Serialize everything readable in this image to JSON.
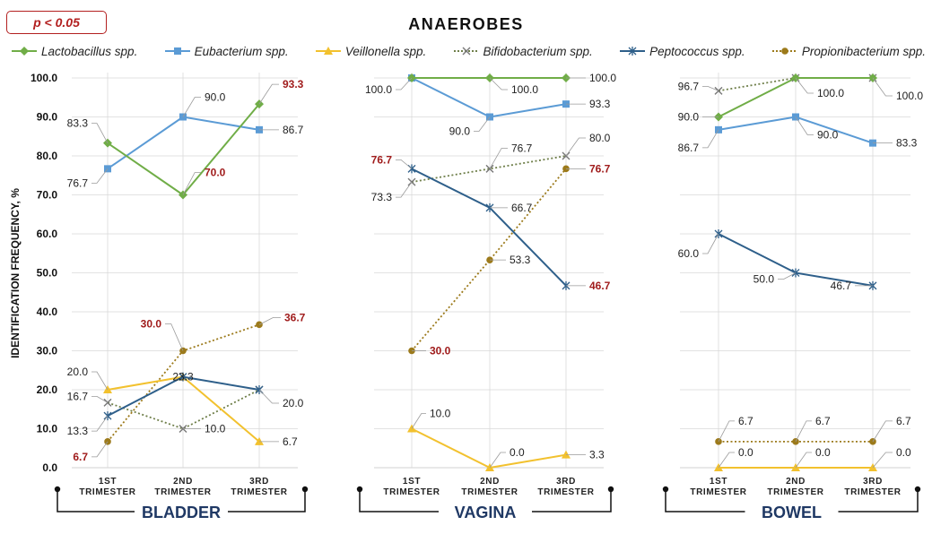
{
  "badge": "p < 0.05",
  "colors": {
    "grid": "#d9d9d9",
    "significant_label": "#a01c1c",
    "normal_label": "#222222",
    "group_label": "#1f3864",
    "leader": "#9a9a9a"
  },
  "chart_data": {
    "type": "line",
    "title": "ANAEROBES",
    "ylabel": "IDENTIFICATION FREQUENCY, %",
    "ylim": [
      0,
      100
    ],
    "yticks": [
      "0.0",
      "10.0",
      "20.0",
      "30.0",
      "40.0",
      "50.0",
      "60.0",
      "70.0",
      "80.0",
      "90.0",
      "100.0"
    ],
    "categories": [
      "1ST TRIMESTER",
      "2ND TRIMESTER",
      "3RD TRIMESTER"
    ],
    "category_lines": [
      [
        "1ST",
        "TRIMESTER"
      ],
      [
        "2ND",
        "TRIMESTER"
      ],
      [
        "3RD",
        "TRIMESTER"
      ]
    ],
    "grid": true,
    "legend_position": "top",
    "series": [
      {
        "name": "Lactobacillus spp.",
        "color": "#70ad47",
        "marker": "diamond",
        "dash": false
      },
      {
        "name": "Eubacterium spp.",
        "color": "#5b9bd5",
        "marker": "square",
        "dash": false
      },
      {
        "name": "Veillonella spp.",
        "color": "#f2c12e",
        "marker": "triangle",
        "dash": false
      },
      {
        "name": "Bifidobacterium spp.",
        "color": "#6f7f4a",
        "marker": "x",
        "dash": true
      },
      {
        "name": "Peptococcus spp.",
        "color": "#2e5f8a",
        "marker": "star",
        "dash": false
      },
      {
        "name": "Propionibacterium spp.",
        "color": "#9c7a1b",
        "marker": "circle",
        "dash": true
      }
    ],
    "groups": [
      {
        "name": "BLADDER",
        "series": [
          {
            "name": "Lactobacillus spp.",
            "values": [
              83.3,
              70.0,
              93.3
            ],
            "labels": [
              {
                "text": "83.3",
                "significant": false
              },
              {
                "text": "70.0",
                "significant": true
              },
              {
                "text": "93.3",
                "significant": true
              }
            ]
          },
          {
            "name": "Eubacterium spp.",
            "values": [
              76.7,
              90.0,
              86.7
            ],
            "labels": [
              {
                "text": "76.7",
                "significant": false
              },
              {
                "text": "90.0",
                "significant": false
              },
              {
                "text": "86.7",
                "significant": false
              }
            ]
          },
          {
            "name": "Veillonella spp.",
            "values": [
              20.0,
              23.3,
              6.7
            ],
            "labels": [
              {
                "text": "20.0",
                "significant": false
              },
              {
                "text": "23.3",
                "significant": false
              },
              {
                "text": "6.7",
                "significant": false
              }
            ]
          },
          {
            "name": "Bifidobacterium spp.",
            "values": [
              16.7,
              10.0,
              20.0
            ],
            "labels": [
              {
                "text": "16.7",
                "significant": false
              },
              {
                "text": "10.0",
                "significant": false
              },
              {
                "text": "20.0",
                "significant": false
              }
            ]
          },
          {
            "name": "Peptococcus spp.",
            "values": [
              13.3,
              23.3,
              20.0
            ],
            "labels": [
              {
                "text": "13.3",
                "significant": false
              },
              null,
              null
            ]
          },
          {
            "name": "Propionibacterium spp.",
            "values": [
              6.7,
              30.0,
              36.7
            ],
            "labels": [
              {
                "text": "6.7",
                "significant": true
              },
              {
                "text": "30.0",
                "significant": true
              },
              {
                "text": "36.7",
                "significant": true
              }
            ]
          }
        ]
      },
      {
        "name": "VAGINA",
        "series": [
          {
            "name": "Lactobacillus spp.",
            "values": [
              100.0,
              100.0,
              100.0
            ],
            "labels": [
              null,
              {
                "text": "100.0",
                "significant": false
              },
              {
                "text": "100.0",
                "significant": false
              }
            ]
          },
          {
            "name": "Eubacterium spp.",
            "values": [
              100.0,
              90.0,
              93.3
            ],
            "labels": [
              {
                "text": "100.0",
                "significant": false
              },
              {
                "text": "90.0",
                "significant": false
              },
              {
                "text": "93.3",
                "significant": false
              }
            ]
          },
          {
            "name": "Veillonella spp.",
            "values": [
              10.0,
              0.0,
              3.3
            ],
            "labels": [
              {
                "text": "10.0",
                "significant": false
              },
              {
                "text": "0.0",
                "significant": false
              },
              {
                "text": "3.3",
                "significant": false
              }
            ]
          },
          {
            "name": "Bifidobacterium spp.",
            "values": [
              73.3,
              76.7,
              80.0
            ],
            "labels": [
              {
                "text": "73.3",
                "significant": false
              },
              {
                "text": "76.7",
                "significant": false
              },
              {
                "text": "80.0",
                "significant": false
              }
            ]
          },
          {
            "name": "Peptococcus spp.",
            "values": [
              76.7,
              66.7,
              46.7
            ],
            "labels": [
              {
                "text": "76.7",
                "significant": true
              },
              {
                "text": "66.7",
                "significant": false
              },
              {
                "text": "46.7",
                "significant": true
              }
            ]
          },
          {
            "name": "Propionibacterium spp.",
            "values": [
              30.0,
              53.3,
              76.7
            ],
            "labels": [
              {
                "text": "30.0",
                "significant": true
              },
              {
                "text": "53.3",
                "significant": false
              },
              {
                "text": "76.7",
                "significant": true
              }
            ]
          }
        ]
      },
      {
        "name": "BOWEL",
        "series": [
          {
            "name": "Lactobacillus spp.",
            "values": [
              90.0,
              100.0,
              100.0
            ],
            "labels": [
              {
                "text": "90.0",
                "significant": false
              },
              {
                "text": "100.0",
                "significant": false
              },
              {
                "text": "100.0",
                "significant": false
              }
            ]
          },
          {
            "name": "Eubacterium spp.",
            "values": [
              86.7,
              90.0,
              83.3
            ],
            "labels": [
              {
                "text": "86.7",
                "significant": false
              },
              {
                "text": "90.0",
                "significant": false
              },
              {
                "text": "83.3",
                "significant": false
              }
            ]
          },
          {
            "name": "Veillonella spp.",
            "values": [
              0.0,
              0.0,
              0.0
            ],
            "labels": [
              {
                "text": "0.0",
                "significant": false
              },
              {
                "text": "0.0",
                "significant": false
              },
              {
                "text": "0.0",
                "significant": false
              }
            ]
          },
          {
            "name": "Bifidobacterium spp.",
            "values": [
              96.7,
              100.0,
              100.0
            ],
            "labels": [
              {
                "text": "96.7",
                "significant": false
              },
              null,
              null
            ]
          },
          {
            "name": "Peptococcus spp.",
            "values": [
              60.0,
              50.0,
              46.7
            ],
            "labels": [
              {
                "text": "60.0",
                "significant": false
              },
              {
                "text": "50.0",
                "significant": false
              },
              {
                "text": "46.7",
                "significant": false
              }
            ]
          },
          {
            "name": "Propionibacterium spp.",
            "values": [
              6.7,
              6.7,
              6.7
            ],
            "labels": [
              {
                "text": "6.7",
                "significant": false
              },
              {
                "text": "6.7",
                "significant": false
              },
              {
                "text": "6.7",
                "significant": false
              }
            ]
          }
        ]
      }
    ]
  }
}
